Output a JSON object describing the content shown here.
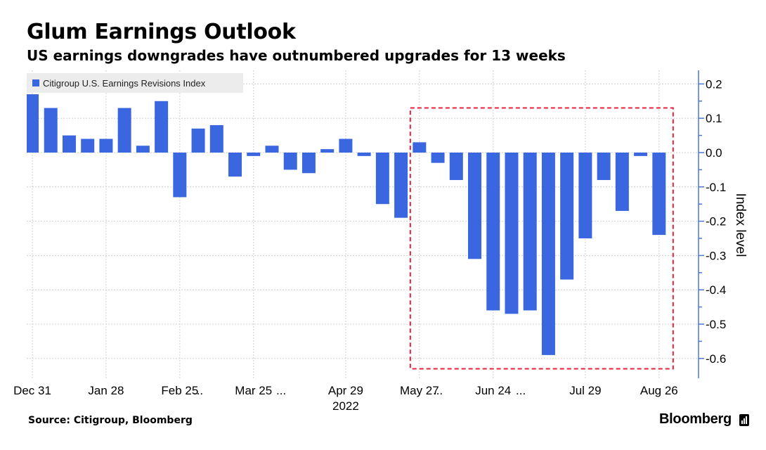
{
  "header": {
    "title": "Glum Earnings Outlook",
    "subtitle": "US earnings downgrades have outnumbered upgrades for 13 weeks"
  },
  "footer": {
    "source": "Source: Citigroup, Bloomberg",
    "brand": "Bloomberg"
  },
  "colors": {
    "bar": "#3a67e0",
    "axis": "#4a76e0",
    "grid": "#d0d0d0",
    "highlight_box": "#e8203a",
    "legend_bg": "#ececec"
  },
  "chart_data": {
    "type": "bar",
    "title": "Glum Earnings Outlook",
    "subtitle": "US earnings downgrades have outnumbered upgrades for 13 weeks",
    "ylabel": "Index level",
    "ylim": [
      -0.65,
      0.24
    ],
    "yticks": [
      0.2,
      0.1,
      0.0,
      -0.1,
      -0.2,
      -0.3,
      -0.4,
      -0.5,
      -0.6
    ],
    "ytick_labels": [
      "0.2",
      "0.1",
      "0.0",
      "-0.1",
      "-0.2",
      "-0.3",
      "-0.4",
      "-0.5",
      "-0.6"
    ],
    "y_axis_side": "right",
    "grid": true,
    "legend_position": "top-left",
    "series": [
      {
        "name": "Citigroup U.S. Earnings Revisions Index",
        "values": [
          0.17,
          0.13,
          0.05,
          0.04,
          0.04,
          0.13,
          0.02,
          0.15,
          -0.13,
          0.07,
          0.08,
          -0.07,
          -0.01,
          0.02,
          -0.05,
          -0.06,
          0.01,
          0.04,
          -0.01,
          -0.15,
          -0.19,
          0.03,
          -0.03,
          -0.08,
          -0.31,
          -0.46,
          -0.47,
          -0.46,
          -0.59,
          -0.37,
          -0.25,
          -0.08,
          -0.17,
          -0.01,
          -0.24
        ]
      }
    ],
    "x_tick_labels": [
      {
        "bar": 0,
        "label": "Dec 31"
      },
      {
        "bar": 4,
        "label": "Jan 28"
      },
      {
        "bar": 8,
        "label": "Feb 25"
      },
      {
        "bar": 9,
        "label": "..."
      },
      {
        "bar": 12,
        "label": "Mar 25"
      },
      {
        "bar": 13.5,
        "label": "..."
      },
      {
        "bar": 17,
        "label": "Apr 29"
      },
      {
        "bar": 21,
        "label": "May 27"
      },
      {
        "bar": 22,
        "label": "..."
      },
      {
        "bar": 25,
        "label": "Jun 24"
      },
      {
        "bar": 26.5,
        "label": "..."
      },
      {
        "bar": 30,
        "label": "Jul 29"
      },
      {
        "bar": 34,
        "label": "Aug 26"
      }
    ],
    "year_label": {
      "bar": 17,
      "label": "2022"
    },
    "highlight": {
      "from_bar": 21,
      "to_bar": 34,
      "ymin": -0.63,
      "ymax": 0.13
    }
  }
}
